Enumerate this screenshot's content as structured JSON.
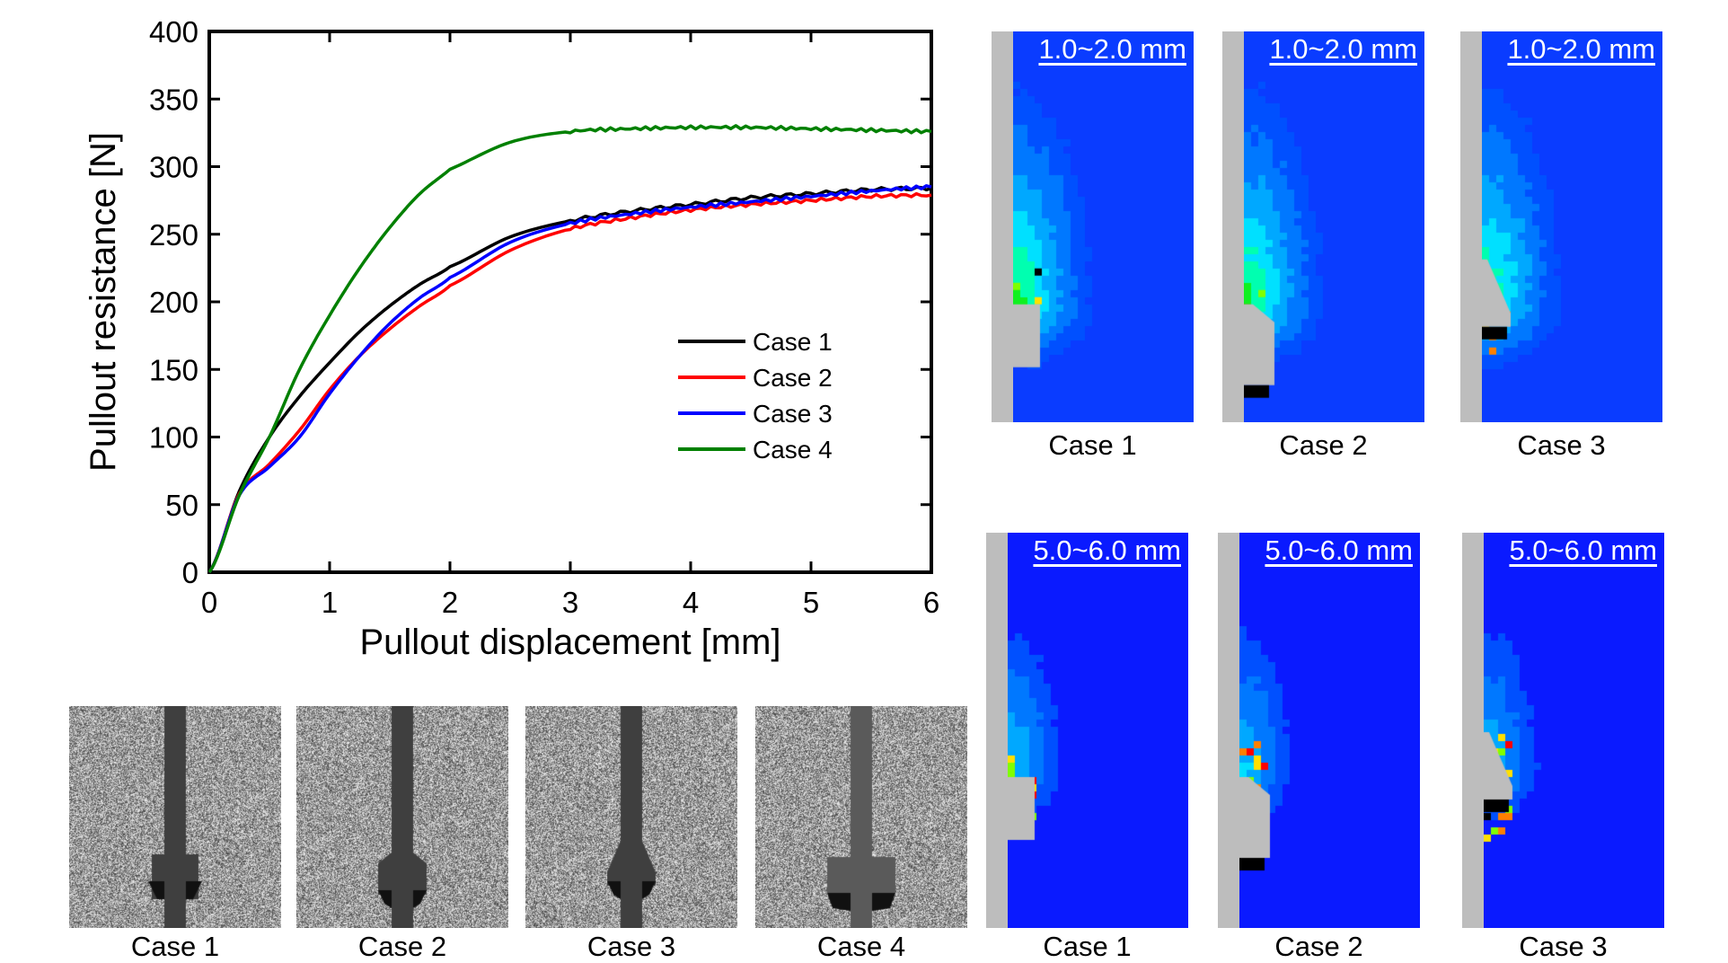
{
  "chart_data": {
    "type": "line",
    "title": "",
    "xlabel": "Pullout displacement [mm]",
    "ylabel": "Pullout resistance [N]",
    "xlim": [
      0,
      6
    ],
    "ylim": [
      0,
      400
    ],
    "xticks": [
      "0",
      "1",
      "2",
      "3",
      "4",
      "5",
      "6"
    ],
    "yticks": [
      "0",
      "50",
      "100",
      "150",
      "200",
      "250",
      "300",
      "350",
      "400"
    ],
    "grid": false,
    "legend_position": "center-right",
    "x": [
      0,
      0.25,
      0.5,
      0.75,
      1.0,
      1.25,
      1.5,
      1.75,
      2.0,
      2.5,
      3.0,
      3.5,
      4.0,
      4.5,
      5.0,
      5.5,
      6.0
    ],
    "series": [
      {
        "name": "Case 1",
        "color": "#000000",
        "values": [
          0,
          60,
          100,
          130,
          155,
          178,
          197,
          213,
          226,
          248,
          260,
          267,
          272,
          277,
          280,
          283,
          284
        ]
      },
      {
        "name": "Case 2",
        "color": "#ff0000",
        "values": [
          0,
          58,
          80,
          105,
          135,
          160,
          180,
          197,
          212,
          238,
          254,
          262,
          268,
          272,
          275,
          278,
          279
        ]
      },
      {
        "name": "Case 3",
        "color": "#0000ff",
        "values": [
          0,
          57,
          78,
          100,
          132,
          160,
          184,
          203,
          218,
          244,
          258,
          265,
          270,
          274,
          278,
          282,
          285
        ]
      },
      {
        "name": "Case 4",
        "color": "#008000",
        "values": [
          0,
          57,
          100,
          150,
          190,
          225,
          255,
          280,
          298,
          318,
          326,
          328,
          329,
          329,
          328,
          327,
          326
        ]
      }
    ]
  },
  "photos": {
    "captions": [
      "Case 1",
      "Case 2",
      "Case 3",
      "Case 4"
    ]
  },
  "dic": {
    "top_row": {
      "range_label": "1.0~2.0 mm",
      "captions": [
        "Case 1",
        "Case 2",
        "Case 3"
      ]
    },
    "bottom_row": {
      "range_label": "5.0~6.0 mm",
      "captions": [
        "Case 1",
        "Case 2",
        "Case 3"
      ]
    }
  },
  "colors": {
    "dic_background": "#0a3cff",
    "shaft_gray": "#bdbdbd"
  }
}
